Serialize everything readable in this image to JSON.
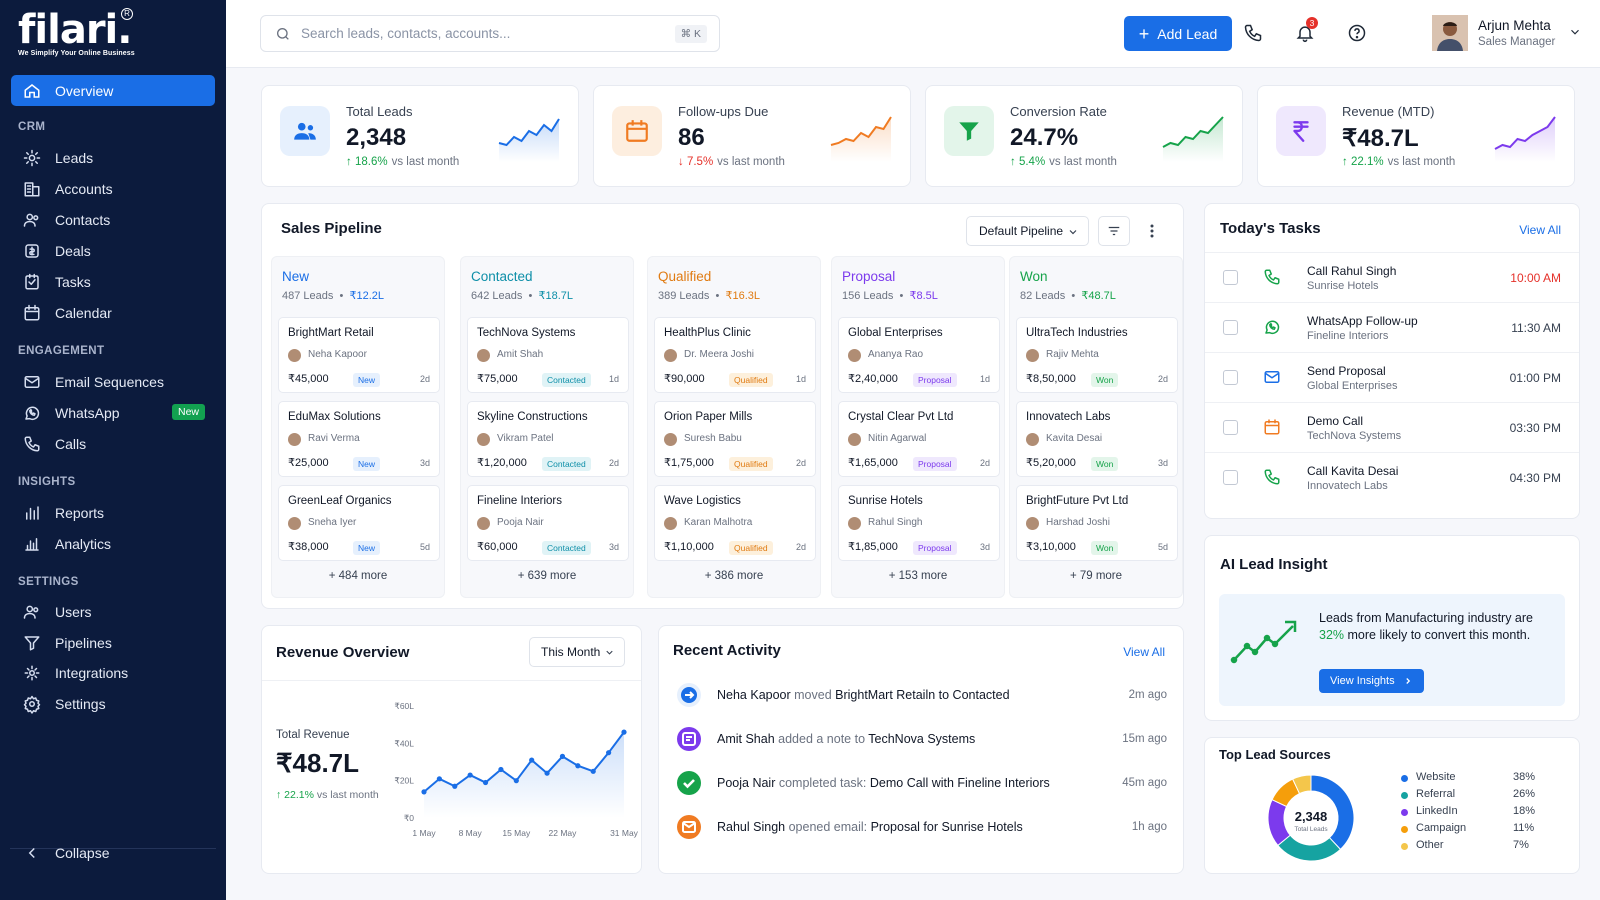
{
  "brand": {
    "name": "filari.",
    "reg": "R",
    "tagline": "We Simplify Your Online Business"
  },
  "sidebar": {
    "overview": "Overview",
    "sections": [
      {
        "title": "CRM",
        "items": [
          "Leads",
          "Accounts",
          "Contacts",
          "Deals",
          "Tasks",
          "Calendar"
        ]
      },
      {
        "title": "ENGAGEMENT",
        "items": [
          "Email Sequences",
          "WhatsApp",
          "Calls"
        ]
      },
      {
        "title": "INSIGHTS",
        "items": [
          "Reports",
          "Analytics"
        ]
      },
      {
        "title": "SETTINGS",
        "items": [
          "Users",
          "Pipelines",
          "Integrations",
          "Settings"
        ]
      }
    ],
    "whatsapp_badge": "New",
    "collapse": "Collapse"
  },
  "topbar": {
    "search_placeholder": "Search leads, contacts, accounts...",
    "shortcut": "⌘ K",
    "add_lead": "Add Lead",
    "notifications": "3",
    "user_name": "Arjun Mehta",
    "user_role": "Sales Manager"
  },
  "kpis": [
    {
      "label": "Total Leads",
      "value": "2,348",
      "change": "18.6%",
      "dir": "up",
      "suffix": "vs last month",
      "color": "#1a6ee6",
      "bg": "#e6f0fd",
      "icon": "users-icon"
    },
    {
      "label": "Follow-ups Due",
      "value": "86",
      "change": "7.5%",
      "dir": "down",
      "suffix": "vs last month",
      "color": "#f07b22",
      "bg": "#fdeedf",
      "icon": "calendar-icon"
    },
    {
      "label": "Conversion Rate",
      "value": "24.7%",
      "change": "5.4%",
      "dir": "up",
      "suffix": "vs last month",
      "color": "#16a34a",
      "bg": "#e3f5ea",
      "icon": "funnel-icon"
    },
    {
      "label": "Revenue (MTD)",
      "value": "₹48.7L",
      "change": "22.1%",
      "dir": "up",
      "suffix": "vs last month",
      "color": "#7c3aed",
      "bg": "#efe8fd",
      "icon": "rupee-icon"
    }
  ],
  "pipeline": {
    "title": "Sales Pipeline",
    "selector": "Default Pipeline",
    "stages": [
      {
        "name": "New",
        "leads": "487 Leads",
        "value": "₹12.2L",
        "color": "#1a6ee6",
        "pill_bg": "#e6f0fd",
        "more": "+ 484 more",
        "deals": [
          {
            "company": "BrightMart Retail",
            "person": "Neha Kapoor",
            "amount": "₹45,000",
            "tag": "New",
            "age": "2d"
          },
          {
            "company": "EduMax Solutions",
            "person": "Ravi Verma",
            "amount": "₹25,000",
            "tag": "New",
            "age": "3d"
          },
          {
            "company": "GreenLeaf Organics",
            "person": "Sneha Iyer",
            "amount": "₹38,000",
            "tag": "New",
            "age": "5d"
          }
        ]
      },
      {
        "name": "Contacted",
        "leads": "642 Leads",
        "value": "₹18.7L",
        "color": "#0e8fa8",
        "pill_bg": "#e0f3f6",
        "more": "+ 639 more",
        "deals": [
          {
            "company": "TechNova Systems",
            "person": "Amit Shah",
            "amount": "₹75,000",
            "tag": "Contacted",
            "age": "1d"
          },
          {
            "company": "Skyline Constructions",
            "person": "Vikram Patel",
            "amount": "₹1,20,000",
            "tag": "Contacted",
            "age": "2d"
          },
          {
            "company": "Fineline Interiors",
            "person": "Pooja Nair",
            "amount": "₹60,000",
            "tag": "Contacted",
            "age": "3d"
          }
        ]
      },
      {
        "name": "Qualified",
        "leads": "389 Leads",
        "value": "₹16.3L",
        "color": "#e07b12",
        "pill_bg": "#fdf0dc",
        "more": "+ 386 more",
        "deals": [
          {
            "company": "HealthPlus Clinic",
            "person": "Dr. Meera Joshi",
            "amount": "₹90,000",
            "tag": "Qualified",
            "age": "1d"
          },
          {
            "company": "Orion Paper Mills",
            "person": "Suresh Babu",
            "amount": "₹1,75,000",
            "tag": "Qualified",
            "age": "2d"
          },
          {
            "company": "Wave Logistics",
            "person": "Karan Malhotra",
            "amount": "₹1,10,000",
            "tag": "Qualified",
            "age": "2d"
          }
        ]
      },
      {
        "name": "Proposal",
        "leads": "156 Leads",
        "value": "₹8.5L",
        "color": "#7c3aed",
        "pill_bg": "#efe8fd",
        "more": "+ 153 more",
        "deals": [
          {
            "company": "Global Enterprises",
            "person": "Ananya Rao",
            "amount": "₹2,40,000",
            "tag": "Proposal",
            "age": "1d"
          },
          {
            "company": "Crystal Clear Pvt Ltd",
            "person": "Nitin Agarwal",
            "amount": "₹1,65,000",
            "tag": "Proposal",
            "age": "2d"
          },
          {
            "company": "Sunrise Hotels",
            "person": "Rahul Singh",
            "amount": "₹1,85,000",
            "tag": "Proposal",
            "age": "3d"
          }
        ]
      },
      {
        "name": "Won",
        "leads": "82 Leads",
        "value": "₹48.7L",
        "color": "#16a34a",
        "pill_bg": "#e3f5ea",
        "more": "+ 79 more",
        "deals": [
          {
            "company": "UltraTech Industries",
            "person": "Rajiv Mehta",
            "amount": "₹8,50,000",
            "tag": "Won",
            "age": "2d"
          },
          {
            "company": "Innovatech Labs",
            "person": "Kavita Desai",
            "amount": "₹5,20,000",
            "tag": "Won",
            "age": "3d"
          },
          {
            "company": "BrightFuture Pvt Ltd",
            "person": "Harshad Joshi",
            "amount": "₹3,10,000",
            "tag": "Won",
            "age": "5d"
          }
        ]
      }
    ]
  },
  "tasks": {
    "title": "Today's Tasks",
    "view_all": "View All",
    "items": [
      {
        "title": "Call Rahul Singh",
        "sub": "Sunrise Hotels",
        "time": "10:00 AM",
        "icon": "phone-icon",
        "color": "#16a34a",
        "urgent": true
      },
      {
        "title": "WhatsApp Follow-up",
        "sub": "Fineline Interiors",
        "time": "11:30 AM",
        "icon": "whatsapp-icon",
        "color": "#16a34a",
        "urgent": false
      },
      {
        "title": "Send Proposal",
        "sub": "Global Enterprises",
        "time": "01:00 PM",
        "icon": "mail-icon",
        "color": "#1a6ee6",
        "urgent": false
      },
      {
        "title": "Demo Call",
        "sub": "TechNova Systems",
        "time": "03:30 PM",
        "icon": "calendar-icon",
        "color": "#f07b22",
        "urgent": false
      },
      {
        "title": "Call Kavita Desai",
        "sub": "Innovatech Labs",
        "time": "04:30 PM",
        "icon": "phone-icon",
        "color": "#16a34a",
        "urgent": false
      }
    ]
  },
  "insight": {
    "title": "AI Lead Insight",
    "text_pre": "Leads from Manufacturing industry are ",
    "highlight": "32%",
    "text_post": " more likely to convert this month.",
    "button": "View Insights"
  },
  "revenue": {
    "title": "Revenue Overview",
    "period": "This Month",
    "total_label": "Total Revenue",
    "total": "₹48.7L",
    "change": "22.1%",
    "change_suffix": "vs last month"
  },
  "chart_data": [
    {
      "type": "area",
      "title": "Revenue Overview",
      "x": [
        "1 May",
        "3 May",
        "5 May",
        "8 May",
        "10 May",
        "12 May",
        "15 May",
        "17 May",
        "19 May",
        "22 May",
        "24 May",
        "26 May",
        "28 May",
        "31 May"
      ],
      "xticks": [
        "1 May",
        "8 May",
        "15 May",
        "22 May",
        "31 May"
      ],
      "y": [
        14,
        21,
        17,
        23,
        19,
        26,
        20,
        31,
        24,
        33,
        28,
        25,
        35,
        46
      ],
      "yticks": [
        "₹0",
        "₹20L",
        "₹40L",
        "₹60L"
      ],
      "ylim": [
        0,
        60
      ],
      "grid": false
    },
    {
      "type": "pie",
      "title": "Top Lead Sources",
      "center_value": "2,348",
      "center_label": "Total Leads",
      "slices": [
        {
          "label": "Website",
          "value": 38,
          "pct": "38%",
          "color": "#1a6ee6"
        },
        {
          "label": "Referral",
          "value": 26,
          "pct": "26%",
          "color": "#16a3a1"
        },
        {
          "label": "LinkedIn",
          "value": 18,
          "pct": "18%",
          "color": "#7c3aed"
        },
        {
          "label": "Campaign",
          "value": 11,
          "pct": "11%",
          "color": "#f59e0b"
        },
        {
          "label": "Other",
          "value": 7,
          "pct": "7%",
          "color": "#f4c64b"
        }
      ]
    }
  ],
  "activity": {
    "title": "Recent Activity",
    "view_all": "View All",
    "items": [
      {
        "actor": "Neha Kapoor",
        "verb": " moved ",
        "object": "BrightMart Retailn to Contacted",
        "ago": "2m ago",
        "color": "#1a6ee6",
        "bg": "#e6f0fd",
        "icon": "arrow-right-icon"
      },
      {
        "actor": "Amit Shah",
        "verb": " added a note to ",
        "object": "TechNova Systems",
        "ago": "15m ago",
        "color": "#ffffff",
        "bg": "#7c3aed",
        "icon": "note-icon"
      },
      {
        "actor": "Pooja Nair",
        "verb": " completed task: ",
        "object": "Demo Call with Fineline Interiors",
        "ago": "45m ago",
        "color": "#ffffff",
        "bg": "#16a34a",
        "icon": "check-icon"
      },
      {
        "actor": "Rahul Singh",
        "verb": " opened email: ",
        "object": "Proposal for Sunrise Hotels",
        "ago": "1h ago",
        "color": "#ffffff",
        "bg": "#f07b22",
        "icon": "mail-icon"
      }
    ]
  },
  "sources": {
    "title": "Top Lead Sources"
  }
}
